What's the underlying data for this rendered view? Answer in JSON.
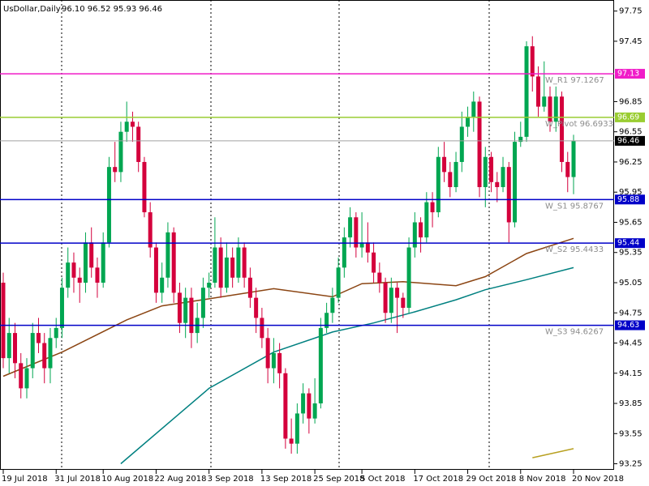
{
  "chart_data": {
    "type": "candlestick",
    "title": "UsDollar,Daily",
    "subtitle": "96.10 96.52 95.93 96.46",
    "categories": [
      "19 Jul 2018",
      null,
      null,
      null,
      null,
      null,
      null,
      null,
      null,
      "31 Jul 2018",
      null,
      null,
      null,
      null,
      null,
      null,
      null,
      "10 Aug 2018",
      null,
      null,
      null,
      null,
      null,
      null,
      null,
      null,
      "22 Aug 2018",
      null,
      null,
      null,
      null,
      null,
      null,
      null,
      null,
      "3 Sep 2018",
      null,
      null,
      null,
      null,
      null,
      null,
      null,
      null,
      "13 Sep 2018",
      null,
      null,
      null,
      null,
      null,
      null,
      null,
      null,
      "25 Sep 2018",
      null,
      null,
      null,
      null,
      null,
      null,
      null,
      "5 Oct 2018",
      null,
      null,
      null,
      null,
      null,
      null,
      null,
      null,
      "17 Oct 2018",
      null,
      null,
      null,
      null,
      null,
      null,
      null,
      null,
      "29 Oct 2018",
      null,
      null,
      null,
      null,
      null,
      null,
      null,
      null,
      "8 Nov 2018",
      null,
      null,
      null,
      null,
      null,
      null,
      null,
      null,
      "20 Nov 2018"
    ],
    "open": [
      95.05,
      94.3,
      94.55,
      94.25,
      94.0,
      94.2,
      94.55,
      94.45,
      94.2,
      94.5,
      94.6,
      95.0,
      95.25,
      95.1,
      95.05,
      95.45,
      95.2,
      95.05,
      95.45,
      96.2,
      96.15,
      96.55,
      96.65,
      96.6,
      96.25,
      95.75,
      95.4,
      94.95,
      95.1,
      95.55,
      94.95,
      94.65,
      94.9,
      94.55,
      94.7,
      95.0,
      95.05,
      95.4,
      95.0,
      95.3,
      95.1,
      95.4,
      95.1,
      94.9,
      94.7,
      94.5,
      94.2,
      94.35,
      94.15,
      93.5,
      93.45,
      93.75,
      93.95,
      93.7,
      93.85,
      94.6,
      94.75,
      94.9,
      95.2,
      95.5,
      95.7,
      95.4,
      95.45,
      95.35,
      95.15,
      95.05,
      94.75,
      95.0,
      94.9,
      94.8,
      95.4,
      95.65,
      95.5,
      95.85,
      95.75,
      96.3,
      96.15,
      96.0,
      96.25,
      96.6,
      96.7,
      96.85,
      96.0,
      96.3,
      96.05,
      96.0,
      96.2,
      95.65,
      96.45,
      96.5,
      97.4,
      97.1,
      96.8,
      96.9,
      96.65,
      96.9,
      96.25,
      96.1
    ],
    "high": [
      95.15,
      94.7,
      94.65,
      94.35,
      94.3,
      94.65,
      94.7,
      94.55,
      94.6,
      94.7,
      95.1,
      95.4,
      95.35,
      95.2,
      95.55,
      95.6,
      95.3,
      95.55,
      96.3,
      96.45,
      96.65,
      96.85,
      96.75,
      96.65,
      96.3,
      95.85,
      95.45,
      95.25,
      95.65,
      95.6,
      95.05,
      95.0,
      95.0,
      94.85,
      95.1,
      95.15,
      95.7,
      95.5,
      95.45,
      95.4,
      95.5,
      95.45,
      95.2,
      95.0,
      94.8,
      94.6,
      94.5,
      94.45,
      94.2,
      93.7,
      93.85,
      94.05,
      94.0,
      94.1,
      94.7,
      94.85,
      95.0,
      95.3,
      95.6,
      95.8,
      95.75,
      95.75,
      95.65,
      95.45,
      95.25,
      95.1,
      95.1,
      95.05,
      94.95,
      95.5,
      95.75,
      95.7,
      95.95,
      95.95,
      96.4,
      96.45,
      96.25,
      96.35,
      96.75,
      96.8,
      96.95,
      96.9,
      96.4,
      96.35,
      96.15,
      96.3,
      96.25,
      96.55,
      96.65,
      97.45,
      97.5,
      97.2,
      97.25,
      97.0,
      97.0,
      96.95,
      96.35,
      96.52
    ],
    "low": [
      94.2,
      94.15,
      94.1,
      93.9,
      93.9,
      94.1,
      94.35,
      94.05,
      94.05,
      94.4,
      94.5,
      94.9,
      94.95,
      94.85,
      94.95,
      95.1,
      94.9,
      95.0,
      95.4,
      96.05,
      96.05,
      96.45,
      96.45,
      96.15,
      95.7,
      95.3,
      94.85,
      94.85,
      95.0,
      94.85,
      94.55,
      94.5,
      94.4,
      94.45,
      94.6,
      94.9,
      95.0,
      94.9,
      94.95,
      95.0,
      95.05,
      95.0,
      94.8,
      94.55,
      94.4,
      94.05,
      94.05,
      94.0,
      93.4,
      93.35,
      93.35,
      93.65,
      93.55,
      93.65,
      93.8,
      94.55,
      94.65,
      94.85,
      95.1,
      95.4,
      95.3,
      95.3,
      95.25,
      95.05,
      94.95,
      94.65,
      94.65,
      94.55,
      94.7,
      94.75,
      95.3,
      95.35,
      95.45,
      95.6,
      95.7,
      96.05,
      95.9,
      95.95,
      96.15,
      96.5,
      96.55,
      95.9,
      95.8,
      95.95,
      95.85,
      95.95,
      95.45,
      95.6,
      96.4,
      96.45,
      96.95,
      96.7,
      96.75,
      96.55,
      96.55,
      96.15,
      95.95,
      95.93
    ],
    "close": [
      94.3,
      94.55,
      94.25,
      94.0,
      94.2,
      94.55,
      94.45,
      94.2,
      94.5,
      94.6,
      95.0,
      95.25,
      95.1,
      95.05,
      95.45,
      95.2,
      95.05,
      95.45,
      96.2,
      96.15,
      96.55,
      96.65,
      96.6,
      96.25,
      95.75,
      95.4,
      94.95,
      95.1,
      95.55,
      94.95,
      94.65,
      94.9,
      94.55,
      94.7,
      95.0,
      95.05,
      95.4,
      95.0,
      95.3,
      95.1,
      95.4,
      95.1,
      94.9,
      94.7,
      94.5,
      94.2,
      94.35,
      94.15,
      93.5,
      93.45,
      93.75,
      93.95,
      93.7,
      93.85,
      94.6,
      94.75,
      94.9,
      95.2,
      95.5,
      95.7,
      95.4,
      95.45,
      95.35,
      95.15,
      95.05,
      94.75,
      95.0,
      94.9,
      94.8,
      95.4,
      95.65,
      95.5,
      95.85,
      95.75,
      96.3,
      96.15,
      96.0,
      96.25,
      96.6,
      96.7,
      96.85,
      96.0,
      96.3,
      96.05,
      96.0,
      96.2,
      95.65,
      96.45,
      96.5,
      97.4,
      97.1,
      96.8,
      96.9,
      96.65,
      96.9,
      96.25,
      96.1,
      96.46
    ],
    "up_color": "#00a651",
    "down_color": "#d4003c",
    "ylim": [
      93.19,
      97.86
    ],
    "yticks": [
      97.75,
      97.45,
      96.85,
      96.55,
      96.25,
      95.95,
      95.65,
      95.35,
      95.05,
      94.75,
      94.45,
      94.15,
      93.85,
      93.55,
      93.25
    ],
    "levels": [
      {
        "label": "W_R1 97.1267",
        "value": 97.1267,
        "value_label": "97.13",
        "color": "#f01cc8"
      },
      {
        "label": "W_Pivot 96.6933",
        "value": 96.6933,
        "value_label": "96.69",
        "color": "#9acd32"
      },
      {
        "label": "W_S1 95.8767",
        "value": 95.8767,
        "value_label": "95.88",
        "color": "#0000c8"
      },
      {
        "label": "W_S2 95.4433",
        "value": 95.4433,
        "value_label": "95.44",
        "color": "#0000c8"
      },
      {
        "label": "W_S3 94.6267",
        "value": 94.6267,
        "value_label": "94.63",
        "color": "#0000c8"
      }
    ],
    "last_price": {
      "value": 96.46,
      "color": "#a0a0a0"
    },
    "lines": [
      {
        "color": "#8b4513",
        "x": [
          0,
          10,
          21,
          27,
          35,
          46,
          56,
          61,
          68,
          77,
          82,
          89,
          97
        ],
        "values": [
          94.12,
          94.36,
          94.68,
          94.82,
          94.89,
          94.99,
          94.91,
          95.04,
          95.06,
          95.02,
          95.11,
          95.34,
          95.49
        ]
      },
      {
        "color": "#008080",
        "x": [
          20,
          35,
          46,
          56,
          63,
          70,
          77,
          82,
          89,
          97
        ],
        "values": [
          93.25,
          94.0,
          94.36,
          94.56,
          94.65,
          94.76,
          94.88,
          94.98,
          95.08,
          95.2
        ]
      },
      {
        "color": "#b8a020",
        "x": [
          90,
          97
        ],
        "values": [
          93.31,
          93.4
        ]
      }
    ]
  }
}
